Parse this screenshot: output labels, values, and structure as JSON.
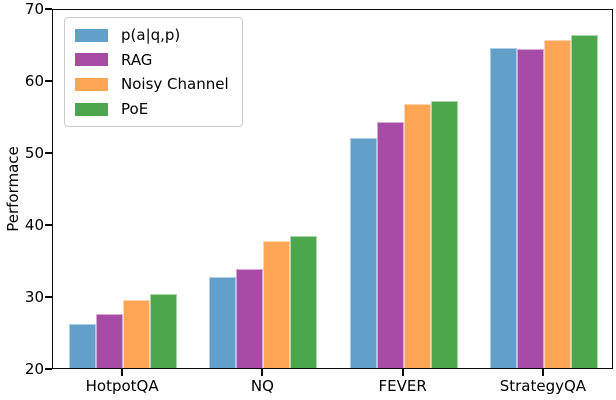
{
  "figure": {
    "background": "#ffffff",
    "axis_color": "#0a0a0a"
  },
  "chart_data": {
    "type": "bar",
    "title": "",
    "xlabel": "",
    "ylabel": "Performace",
    "ylim": [
      20,
      70
    ],
    "yticks": [
      20,
      30,
      40,
      50,
      60,
      70
    ],
    "categories": [
      "HotpotQA",
      "NQ",
      "FEVER",
      "StrategyQA"
    ],
    "series": [
      {
        "name": "p(a|q,p)",
        "color": "#62A0CA",
        "edge_color": "#AECDE6",
        "values": [
          26.1,
          32.6,
          52.0,
          64.5
        ]
      },
      {
        "name": "RAG",
        "color": "#A64CA6",
        "edge_color": "#D4A9D4",
        "values": [
          27.5,
          33.8,
          54.2,
          64.3
        ]
      },
      {
        "name": "Noisy Channel",
        "color": "#FFA656",
        "edge_color": "#FFD4AE",
        "values": [
          29.5,
          37.7,
          56.7,
          65.6
        ]
      },
      {
        "name": "PoE",
        "color": "#4CA64C",
        "edge_color": "#ABD6AB",
        "values": [
          30.3,
          38.4,
          57.1,
          66.3
        ]
      }
    ],
    "legend_position": "upper-left",
    "grid": false
  }
}
